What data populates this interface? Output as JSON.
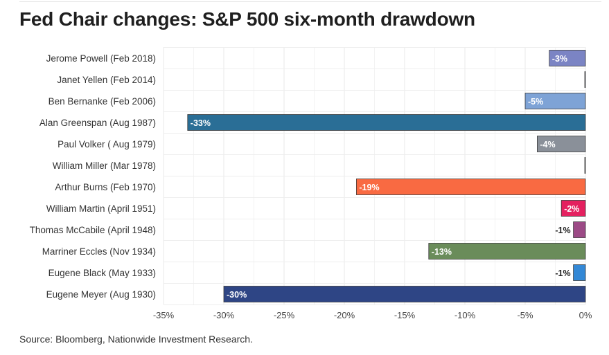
{
  "title": "Fed Chair changes: S&P 500 six-month drawdown",
  "source": "Source: Bloomberg, Nationwide Investment Research.",
  "chart_data": {
    "type": "bar",
    "orientation": "horizontal",
    "title": "Fed Chair changes: S&P 500 six-month drawdown",
    "xlabel": "",
    "ylabel": "",
    "xlim": [
      -35,
      0
    ],
    "x_ticks": [
      -35,
      -30,
      -25,
      -20,
      -15,
      -10,
      -5,
      0
    ],
    "x_tick_labels": [
      "-35%",
      "-30%",
      "-25%",
      "-20%",
      "-15%",
      "-10%",
      "-5%",
      "0%"
    ],
    "grid": true,
    "categories": [
      "Jerome Powell (Feb 2018)",
      "Janet Yellen (Feb 2014)",
      "Ben Bernanke (Feb 2006)",
      "Alan Greenspan (Aug 1987)",
      "Paul Volker ( Aug 1979)",
      "William Miller (Mar 1978)",
      "Arthur Burns (Feb 1970)",
      "William Martin (April 1951)",
      "Thomas McCabile (April 1948)",
      "Marriner Eccles (Nov 1934)",
      "Eugene Black (May 1933)",
      "Eugene Meyer (Aug 1930)"
    ],
    "values": [
      -3,
      0,
      -5,
      -33,
      -4,
      0,
      -19,
      -2,
      -1,
      -13,
      -1,
      -30
    ],
    "data_labels": [
      "-3%",
      "",
      "-5%",
      "-33%",
      "-4%",
      "",
      "-19%",
      "-2%",
      "-1%",
      "-13%",
      "-1%",
      "-30%"
    ],
    "colors": [
      "#7b84c4",
      "#a9b8d6",
      "#7ea3d6",
      "#2a6e96",
      "#8a9099",
      "#b6b6b6",
      "#f96a42",
      "#e4205f",
      "#9c4a86",
      "#6a8c5a",
      "#3388d6",
      "#2e4585"
    ],
    "label_colors": [
      "#ffffff",
      "#ffffff",
      "#ffffff",
      "#ffffff",
      "#ffffff",
      "#ffffff",
      "#ffffff",
      "#ffffff",
      "#222222",
      "#ffffff",
      "#222222",
      "#ffffff"
    ]
  }
}
